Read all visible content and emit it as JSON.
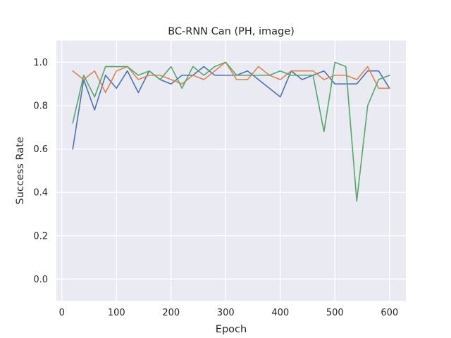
{
  "chart_data": {
    "type": "line",
    "title": "BC-RNN Can (PH, image)",
    "xlabel": "Epoch",
    "ylabel": "Success Rate",
    "xlim": [
      -10,
      630
    ],
    "ylim": [
      -0.1,
      1.1
    ],
    "x_ticks": [
      0,
      100,
      200,
      300,
      400,
      500,
      600
    ],
    "y_ticks": [
      0.0,
      0.2,
      0.4,
      0.6,
      0.8,
      1.0
    ],
    "x_tick_labels": [
      "0",
      "100",
      "200",
      "300",
      "400",
      "500",
      "600"
    ],
    "y_tick_labels": [
      "0.0",
      "0.2",
      "0.4",
      "0.6",
      "0.8",
      "1.0"
    ],
    "grid": true,
    "background": "#eaeaf2",
    "x": [
      20,
      40,
      60,
      80,
      100,
      120,
      140,
      160,
      180,
      200,
      220,
      240,
      260,
      280,
      300,
      320,
      340,
      360,
      380,
      400,
      420,
      440,
      460,
      480,
      500,
      520,
      540,
      560,
      580,
      600
    ],
    "series": [
      {
        "color": "#4c72b0",
        "values": [
          0.6,
          0.92,
          0.78,
          0.94,
          0.88,
          0.96,
          0.86,
          0.96,
          0.92,
          0.9,
          0.94,
          0.94,
          0.98,
          0.94,
          0.94,
          0.94,
          0.96,
          0.92,
          0.88,
          0.84,
          0.96,
          0.92,
          0.94,
          0.96,
          0.9,
          0.9,
          0.9,
          0.96,
          0.96,
          0.88
        ]
      },
      {
        "color": "#dd8452",
        "values": [
          0.96,
          0.92,
          0.96,
          0.86,
          0.96,
          0.98,
          0.92,
          0.94,
          0.94,
          0.92,
          0.9,
          0.94,
          0.92,
          0.96,
          1.0,
          0.92,
          0.92,
          0.98,
          0.94,
          0.92,
          0.96,
          0.96,
          0.96,
          0.92,
          0.94,
          0.94,
          0.92,
          0.98,
          0.88,
          0.88
        ]
      },
      {
        "color": "#55a868",
        "values": [
          0.72,
          0.94,
          0.84,
          0.98,
          0.98,
          0.98,
          0.94,
          0.96,
          0.92,
          0.98,
          0.88,
          0.98,
          0.94,
          0.98,
          1.0,
          0.94,
          0.94,
          0.94,
          0.94,
          0.96,
          0.94,
          0.94,
          0.94,
          0.68,
          1.0,
          0.98,
          0.36,
          0.8,
          0.92,
          0.94
        ]
      }
    ]
  }
}
